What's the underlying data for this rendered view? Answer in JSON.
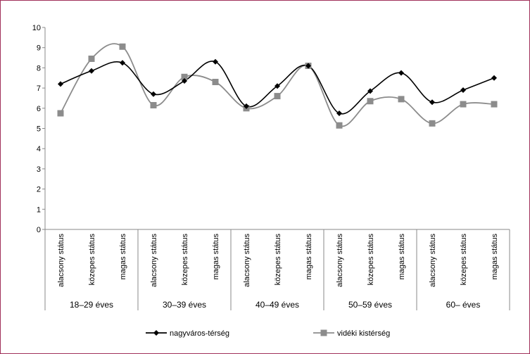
{
  "chart_data": {
    "type": "line",
    "title": "",
    "xlabel": "",
    "ylabel": "",
    "ylim": [
      0,
      10
    ],
    "yticks": [
      0,
      1,
      2,
      3,
      4,
      5,
      6,
      7,
      8,
      9,
      10
    ],
    "grid": false,
    "legend_position": "bottom",
    "groups": [
      "18–29 éves",
      "30–39 éves",
      "40–49 éves",
      "50–59 éves",
      "60– éves"
    ],
    "categories": [
      "alacsony státus",
      "közepes státus",
      "magas státus",
      "alacsony státus",
      "közepes státus",
      "magas státus",
      "alacsony státus",
      "közepes státus",
      "magas státus",
      "alacsony státus",
      "közepes státus",
      "magas státus",
      "alacsony státus",
      "közepes státus",
      "magas státus"
    ],
    "series": [
      {
        "name": "nagyváros-térség",
        "color": "#000000",
        "marker": "diamond",
        "values": [
          7.2,
          7.85,
          8.25,
          6.7,
          7.35,
          8.3,
          6.1,
          7.1,
          8.1,
          5.75,
          6.85,
          7.75,
          6.3,
          6.9,
          7.5
        ]
      },
      {
        "name": "vidéki kistérség",
        "color": "#8c8c8c",
        "marker": "square",
        "values": [
          5.75,
          8.45,
          9.05,
          6.15,
          7.55,
          7.3,
          6.0,
          6.6,
          8.1,
          5.15,
          6.35,
          6.45,
          5.25,
          6.2,
          6.2
        ]
      }
    ]
  }
}
